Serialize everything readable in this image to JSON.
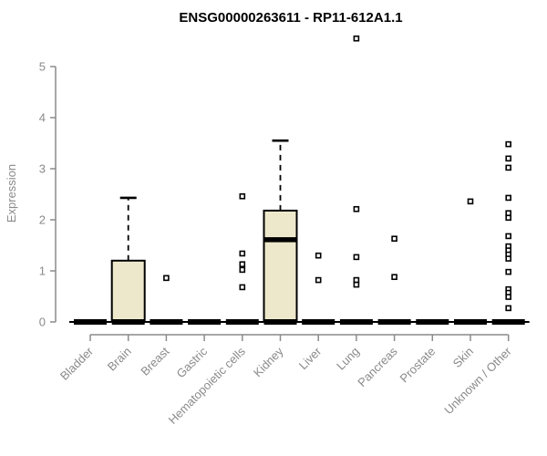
{
  "chart_data": {
    "type": "boxplot",
    "title": "ENSG00000263611 - RP11-612A1.1",
    "ylabel": "Expression",
    "ylim": [
      0,
      5
    ],
    "yticks": [
      0,
      1,
      2,
      3,
      4,
      5
    ],
    "grid": "off",
    "legend": "none",
    "categories": [
      "Bladder",
      "Brain",
      "Breast",
      "Gastric",
      "Hematopoietic cells",
      "Kidney",
      "Liver",
      "Lung",
      "Pancreas",
      "Prostate",
      "Skin",
      "Unknown / Other"
    ],
    "boxes": [
      {
        "category": "Bladder",
        "q1": 0,
        "median": 0,
        "q3": 0,
        "whisker_low": 0,
        "whisker_high": 0,
        "outliers": []
      },
      {
        "category": "Brain",
        "q1": 0,
        "median": 0,
        "q3": 1.2,
        "whisker_low": 0,
        "whisker_high": 2.43,
        "outliers": []
      },
      {
        "category": "Breast",
        "q1": 0,
        "median": 0,
        "q3": 0,
        "whisker_low": 0,
        "whisker_high": 0,
        "outliers": [
          0.86
        ]
      },
      {
        "category": "Gastric",
        "q1": 0,
        "median": 0,
        "q3": 0,
        "whisker_low": 0,
        "whisker_high": 0,
        "outliers": []
      },
      {
        "category": "Hematopoietic cells",
        "q1": 0,
        "median": 0,
        "q3": 0,
        "whisker_low": 0,
        "whisker_high": 0,
        "outliers": [
          2.46,
          1.34,
          1.13,
          1.02,
          0.68
        ]
      },
      {
        "category": "Kidney",
        "q1": 0,
        "median": 1.61,
        "q3": 2.18,
        "whisker_low": 0,
        "whisker_high": 3.55,
        "outliers": []
      },
      {
        "category": "Liver",
        "q1": 0,
        "median": 0,
        "q3": 0,
        "whisker_low": 0,
        "whisker_high": 0,
        "outliers": [
          1.3,
          0.82
        ]
      },
      {
        "category": "Lung",
        "q1": 0,
        "median": 0,
        "q3": 0,
        "whisker_low": 0,
        "whisker_high": 0,
        "outliers": [
          5.55,
          2.21,
          1.27,
          0.82,
          0.73
        ]
      },
      {
        "category": "Pancreas",
        "q1": 0,
        "median": 0,
        "q3": 0,
        "whisker_low": 0,
        "whisker_high": 0,
        "outliers": [
          1.63,
          0.88
        ]
      },
      {
        "category": "Prostate",
        "q1": 0,
        "median": 0,
        "q3": 0,
        "whisker_low": 0,
        "whisker_high": 0,
        "outliers": []
      },
      {
        "category": "Skin",
        "q1": 0,
        "median": 0,
        "q3": 0,
        "whisker_low": 0,
        "whisker_high": 0,
        "outliers": [
          2.36
        ]
      },
      {
        "category": "Unknown / Other",
        "q1": 0,
        "median": 0,
        "q3": 0,
        "whisker_low": 0,
        "whisker_high": 0,
        "outliers": [
          3.48,
          3.2,
          3.02,
          2.43,
          2.13,
          2.04,
          1.68,
          1.48,
          1.4,
          1.32,
          1.24,
          0.98,
          0.64,
          0.57,
          0.49,
          0.27
        ]
      }
    ],
    "colors": {
      "box_fill": "#EDE8CB",
      "box_stroke": "#000000",
      "median": "#000000",
      "outlier_fill": "#FFFFFF",
      "outlier_stroke": "#000000",
      "axis": "#8a8a8a",
      "title": "#000000",
      "background": "#FFFFFF"
    }
  }
}
